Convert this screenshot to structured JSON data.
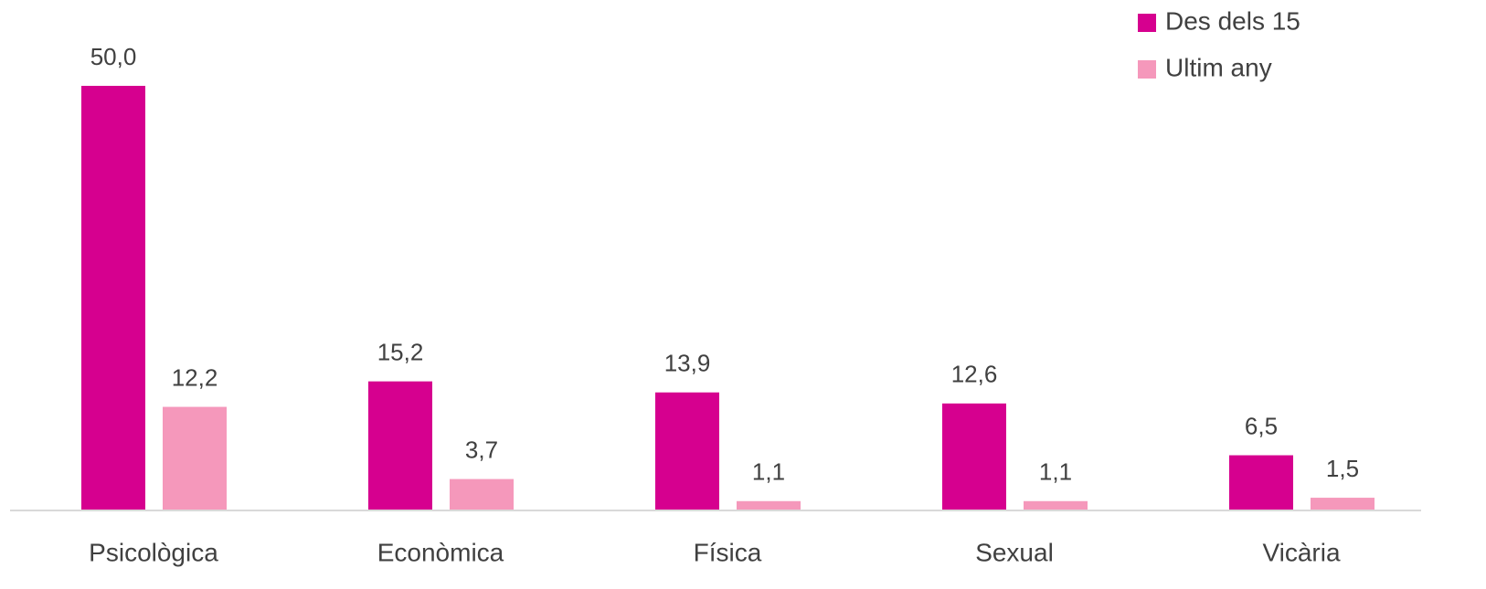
{
  "chart_data": {
    "type": "bar",
    "categories": [
      "Psicològica",
      "Econòmica",
      "Física",
      "Sexual",
      "Vicària"
    ],
    "series": [
      {
        "name": "Des dels 15",
        "color": "#d6008f",
        "values": [
          50.0,
          15.2,
          13.9,
          12.6,
          6.5
        ],
        "value_labels": [
          "50,0",
          "15,2",
          "13,9",
          "12,6",
          "6,5"
        ]
      },
      {
        "name": "Ultim any",
        "color": "#f598bb",
        "values": [
          12.2,
          3.7,
          1.1,
          1.1,
          1.5
        ],
        "value_labels": [
          "12,2",
          "3,7",
          "1,1",
          "1,1",
          "1,5"
        ]
      }
    ],
    "legend": "top-right"
  }
}
